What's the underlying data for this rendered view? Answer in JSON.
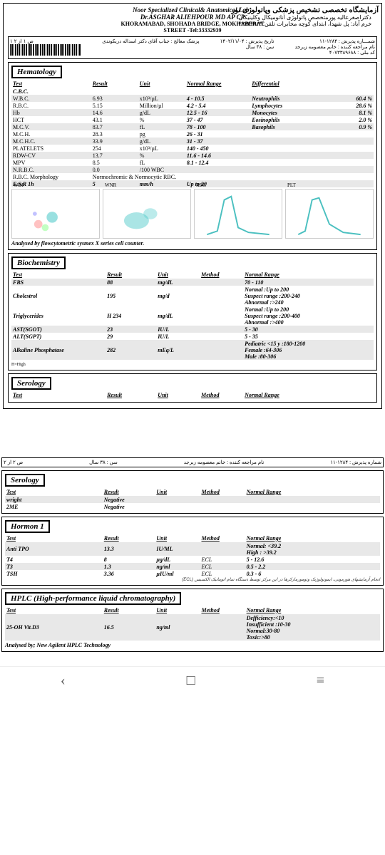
{
  "header": {
    "lab_en": "Noor Specialized Clinical& Anatomical Lab .",
    "doctor_en": "Dr.ASGHAR ALIEHPOUR MD AP CP",
    "addr1": "KHORAMABAD, SHOHADA BRIDGE, MOKHABERAT",
    "addr2": "STREET -Tel:33332939",
    "lab_fa": "آزمایشگاه تخصصی تشخیص پزشکی وپاتولوژی نور",
    "doctor_fa": "دکتراصغرعالیه پورمتخصص پاتولوژی آناتومیکال وکلینیکال",
    "addr_fa": "خرم آباد: پل شهدا، ابتدای کوچه مخابرات    تلفن:۳۳۳۳۲۹۳۹"
  },
  "patient": {
    "no": "شمـــاره پذیرش : ۱۲۸۴-۱۱",
    "name": "نام مراجعه کننده :  خانم معصومه زبرجد",
    "nid": "کد ملی : ۴۰۷۳۳۸۹۶۸۸",
    "date": "تاریخ پذیرش : ۱۴۰۲/۱۱/۰۴",
    "age": "سن : ۳۸ سال",
    "doc": "پزشک معالج : جناب آقای دکتر اسداله دریکوندی",
    "page": "۱\nص ۱ از ۲"
  },
  "sections": {
    "hematology": "Hematology",
    "biochemistry": "Biochemistry",
    "serology": "Serology",
    "hormon": "Hormon 1",
    "hplc": "HPLC (High-performance liquid chromatography)"
  },
  "col": {
    "test": "Test",
    "result": "Result",
    "unit": "Unit",
    "range": "Normal Range",
    "diff": "Differential",
    "method": "Method"
  },
  "cbc_label": "C.B.C.",
  "hema": [
    {
      "t": "W.B.C.",
      "r": "6.93",
      "u": "x10³/µL",
      "n": "4 - 10.5",
      "d": "Neutrophils",
      "dp": "60.4 %",
      "s": 1
    },
    {
      "t": "R.B.C.",
      "r": "5.15",
      "u": "Million/µl",
      "n": "4.2 - 5.4",
      "d": "Lymphocytes",
      "dp": "28.6 %",
      "s": 0
    },
    {
      "t": "Hb",
      "r": "14.6",
      "u": "g/dL",
      "n": "12.5 - 16",
      "d": "Monocytes",
      "dp": "8.1 %",
      "s": 1
    },
    {
      "t": "HCT",
      "r": "43.1",
      "u": "%",
      "n": "37 - 47",
      "d": "Eosinophils",
      "dp": "2.0 %",
      "s": 0
    },
    {
      "t": "M.C.V.",
      "r": "83.7",
      "u": "fL",
      "n": "78 - 100",
      "d": "Basophils",
      "dp": "0.9 %",
      "s": 1
    },
    {
      "t": "M.C.H.",
      "r": "28.3",
      "u": "pg",
      "n": "26 - 31",
      "d": "",
      "dp": "",
      "s": 0
    },
    {
      "t": "M.C.H.C.",
      "r": "33.9",
      "u": "g/dL",
      "n": "31 - 37",
      "d": "",
      "dp": "",
      "s": 1
    },
    {
      "t": "PLATELETS",
      "r": "254",
      "u": "x10³/µL",
      "n": "140 - 450",
      "d": "",
      "dp": "",
      "s": 0
    },
    {
      "t": "RDW-CV",
      "r": "13.7",
      "u": "%",
      "n": "11.6 - 14.6",
      "d": "",
      "dp": "",
      "s": 1
    },
    {
      "t": "MPV",
      "r": "8.5",
      "u": "fL",
      "n": "8.1 - 12.4",
      "d": "",
      "dp": "",
      "s": 0
    },
    {
      "t": "N.R.B.C.",
      "r": "0.0",
      "u": "/100 WBC",
      "n": "",
      "d": "",
      "dp": "",
      "s": 1
    }
  ],
  "morph": {
    "t": "R.B.C. Morphology",
    "r": "Normochromic & Normocytic RBC."
  },
  "esr": {
    "t": "E.S.R 1h",
    "r": "5",
    "u": "mm/h",
    "n": "Up to 20"
  },
  "charts": {
    "wdf": "WDF",
    "wnr": "WNR",
    "rbc": "RBC",
    "plt": "PLT"
  },
  "hema_foot": "Analysed by flowcytometric sysmex X series cell counter.",
  "bio": [
    {
      "t": "FBS",
      "r": "88",
      "u": "mg/dL",
      "m": "",
      "n": "70 - 110",
      "s": 1,
      "bold": 1
    },
    {
      "t": "Cholestrol",
      "r": "195",
      "u": "mg/d",
      "m": "",
      "n": "Normal        :Up to 200\nSuspect range :200-240\nAbnormal     :>240",
      "s": 0,
      "bold": 1
    },
    {
      "t": "Triglycerides",
      "r": "H  234",
      "u": "mg/dL",
      "m": "",
      "n": "Normal        :Up to 200\nSuspect range :200-400\nAbnormal     :>400",
      "s": 0,
      "bold": 1
    },
    {
      "t": "AST(SGOT)",
      "r": "23",
      "u": "IU/L",
      "m": "",
      "n": "5 - 30",
      "s": 1,
      "bold": 1
    },
    {
      "t": "ALT(SGPT)",
      "r": "29",
      "u": "IU/L",
      "m": "",
      "n": "5 - 35",
      "s": 0,
      "bold": 1
    },
    {
      "t": "Alkaline Phosphatase",
      "r": "282",
      "u": "mEq/L",
      "m": "",
      "n": "Pediatric <15 y :180-1200\nFemale           :64-306\nMale              :80-306",
      "s": 1,
      "bold": 1
    }
  ],
  "highlbl": "H=High",
  "page2": {
    "no": "شماره پذیرش : ۱۲۸۴-۱۱",
    "name": "نام مراجعه کننده : خانم معصومه زبرجد",
    "age": "سن : ۳۸ سال",
    "page": "ص  ۲   از   ۲"
  },
  "sero": [
    {
      "t": "wright",
      "r": "Negative",
      "s": 1
    },
    {
      "t": "2ME",
      "r": "Negative",
      "s": 0
    }
  ],
  "horm": [
    {
      "t": "Anti TPO",
      "r": "13.3",
      "u": "IU/ML",
      "m": "",
      "n": "Normal: <39.2\nHigh : >39.2",
      "s": 1
    },
    {
      "t": "T4",
      "r": "8",
      "u": "µg/dL",
      "m": "ECL",
      "n": "5 - 12.6",
      "s": 0
    },
    {
      "t": "T3",
      "r": "1.3",
      "u": "ng/ml",
      "m": "ECL",
      "n": "0.5 - 2.2",
      "s": 1
    },
    {
      "t": "TSH",
      "r": "3.36",
      "u": "µIU/ml",
      "m": "ECL",
      "n": "0.3 - 6",
      "s": 0
    }
  ],
  "horm_foot": "انجام آزمایشهای هورمونی، ایمونولوژیک وتومورمارکرها در این مرکز توسط دستگاه تمام اتوماتیک الکسیس (ECL)",
  "hplc": [
    {
      "t": "25-OH Vit.D3",
      "r": "16.5",
      "u": "ng/ml",
      "m": "",
      "n": "Defficiency:<10\nInsufficient :10-30\nNormal:30-80\nToxic:>80",
      "s": 1
    }
  ],
  "hplc_foot": "Analysed by; New Agilent HPLC Technology",
  "colors": {
    "chart_line": "#4bc0c0",
    "scatter": [
      "#ff9999",
      "#99ff99",
      "#9999ff",
      "#55cccc"
    ]
  }
}
